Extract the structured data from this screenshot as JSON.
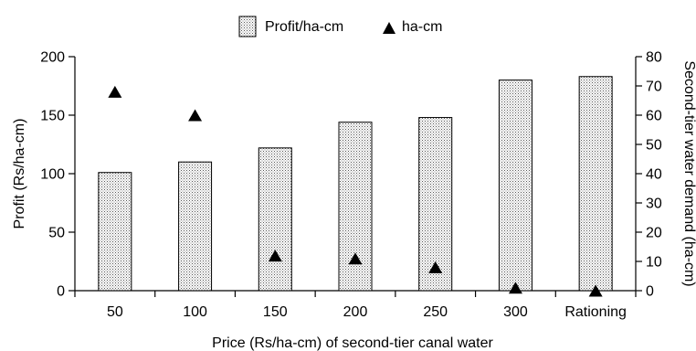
{
  "chart_data": {
    "type": "bar",
    "categories": [
      "50",
      "100",
      "150",
      "200",
      "250",
      "300",
      "Rationing"
    ],
    "xlabel": "Price (Rs/ha-cm) of second-tier canal water",
    "ylabel": "Profit (Rs/ha-cm)",
    "y2label": "Second-tier water demand (ha-cm)",
    "ylim": [
      0,
      200
    ],
    "y2lim": [
      0,
      80
    ],
    "yticks": [
      0,
      50,
      100,
      150,
      200
    ],
    "y2ticks": [
      0,
      10,
      20,
      30,
      40,
      50,
      60,
      70,
      80
    ],
    "grid": false,
    "legend_position": "top-center",
    "series": [
      {
        "name": "Profit/ha-cm",
        "type": "bar",
        "axis": "left",
        "values": [
          101,
          110,
          122,
          144,
          148,
          180,
          183
        ]
      },
      {
        "name": "ha-cm",
        "type": "scatter",
        "marker": "triangle",
        "axis": "right",
        "values": [
          68,
          60,
          12,
          11,
          8,
          1,
          0
        ]
      }
    ]
  }
}
